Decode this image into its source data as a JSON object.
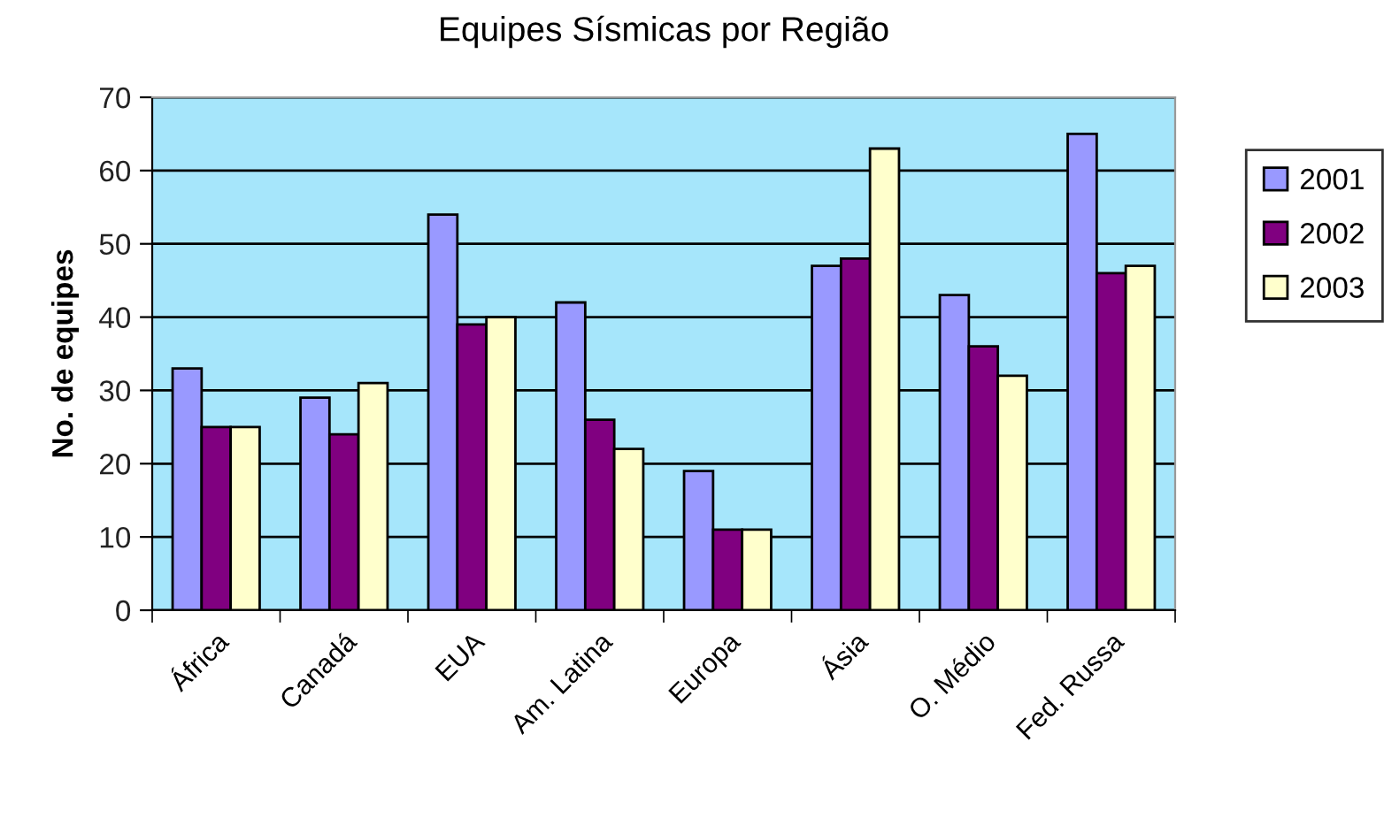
{
  "chart_data": {
    "type": "bar",
    "title": "Equipes Sísmicas por Região",
    "ylabel": "No. de equipes",
    "categories": [
      "África",
      "Canadá",
      "EUA",
      "Am. Latina",
      "Europa",
      "Ásia",
      "O. Médio",
      "Fed. Russa"
    ],
    "series": [
      {
        "name": "2001",
        "color": "#9999ff",
        "values": [
          33,
          29,
          54,
          42,
          19,
          47,
          43,
          65
        ]
      },
      {
        "name": "2002",
        "color": "#800080",
        "values": [
          25,
          24,
          39,
          26,
          11,
          48,
          36,
          46
        ]
      },
      {
        "name": "2003",
        "color": "#ffffcc",
        "values": [
          25,
          31,
          40,
          22,
          11,
          63,
          32,
          47
        ]
      }
    ],
    "ylim": [
      0,
      70
    ],
    "yticks": [
      0,
      10,
      20,
      30,
      40,
      50,
      60,
      70
    ],
    "grid": "y",
    "legend": "right"
  }
}
